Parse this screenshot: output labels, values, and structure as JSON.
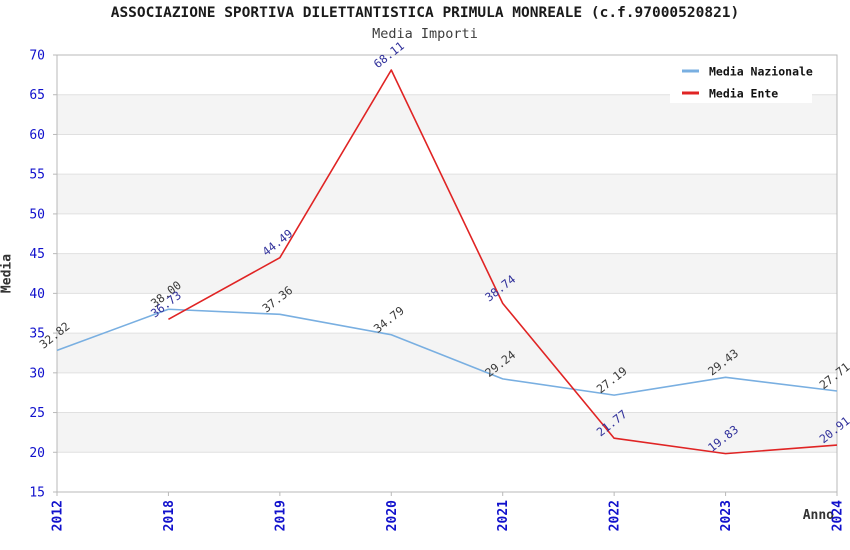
{
  "chart_data": {
    "type": "line",
    "title": "ASSOCIAZIONE SPORTIVA DILETTANTISTICA PRIMULA MONREALE (c.f.97000520821)",
    "subtitle": "Media Importi",
    "xlabel": "Anno",
    "ylabel": "Media",
    "x_categories": [
      "2012",
      "2018",
      "2019",
      "2020",
      "2021",
      "2022",
      "2023",
      "2024"
    ],
    "ylim": [
      15,
      70
    ],
    "ytick_step": 5,
    "yticks": [
      15,
      20,
      25,
      30,
      35,
      40,
      45,
      50,
      55,
      60,
      65,
      70
    ],
    "grid": "horizontal",
    "banded_background": true,
    "legend_position": "top-right",
    "axis_tick_label_color": "#1111cc",
    "series": [
      {
        "name": "Media Nazionale",
        "color": "#79afe1",
        "label_color": "#3a3a3a",
        "values": [
          32.82,
          38.0,
          37.36,
          34.79,
          29.24,
          27.19,
          29.43,
          27.71
        ],
        "labels": [
          "32.82",
          "38.00",
          "37.36",
          "34.79",
          "29.24",
          "27.19",
          "29.43",
          "27.71"
        ]
      },
      {
        "name": "Media Ente",
        "color": "#e02424",
        "label_color": "#31319b",
        "values": [
          null,
          36.73,
          44.49,
          68.11,
          38.74,
          21.77,
          19.83,
          20.91
        ],
        "labels": [
          null,
          "36.73",
          "44.49",
          "68.11",
          "38.74",
          "21.77",
          "19.83",
          "20.91"
        ]
      }
    ]
  }
}
